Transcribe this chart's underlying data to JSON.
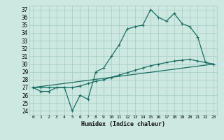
{
  "xlabel": "Humidex (Indice chaleur)",
  "bg_color": "#cce8e0",
  "grid_color": "#aacfc8",
  "line_color": "#1a6e62",
  "xlim": [
    -0.5,
    23.5
  ],
  "ylim": [
    23.5,
    37.5
  ],
  "xticks": [
    0,
    1,
    2,
    3,
    4,
    5,
    6,
    7,
    8,
    9,
    10,
    11,
    12,
    13,
    14,
    15,
    16,
    17,
    18,
    19,
    20,
    21,
    22,
    23
  ],
  "yticks": [
    24,
    25,
    26,
    27,
    28,
    29,
    30,
    31,
    32,
    33,
    34,
    35,
    36,
    37
  ],
  "line1_x": [
    0,
    1,
    2,
    3,
    4,
    5,
    6,
    7,
    8,
    9,
    10,
    11,
    12,
    13,
    14,
    15,
    16,
    17,
    18,
    19,
    20,
    21,
    22,
    23
  ],
  "line1_y": [
    27.0,
    26.5,
    26.5,
    27.0,
    27.0,
    24.0,
    26.0,
    25.5,
    29.0,
    29.5,
    31.0,
    32.5,
    34.5,
    34.8,
    35.0,
    37.0,
    36.0,
    35.5,
    36.5,
    35.2,
    34.8,
    33.5,
    30.2,
    30.0
  ],
  "line2_x": [
    0,
    1,
    2,
    3,
    4,
    5,
    6,
    7,
    8,
    9,
    10,
    11,
    12,
    13,
    14,
    15,
    16,
    17,
    18,
    19,
    20,
    21,
    22,
    23
  ],
  "line2_y": [
    27.0,
    27.0,
    27.0,
    27.0,
    27.0,
    27.0,
    27.2,
    27.5,
    27.8,
    28.0,
    28.3,
    28.6,
    28.9,
    29.2,
    29.5,
    29.8,
    30.0,
    30.2,
    30.4,
    30.5,
    30.6,
    30.4,
    30.2,
    30.0
  ],
  "line3_x": [
    0,
    23
  ],
  "line3_y": [
    27.0,
    30.0
  ]
}
